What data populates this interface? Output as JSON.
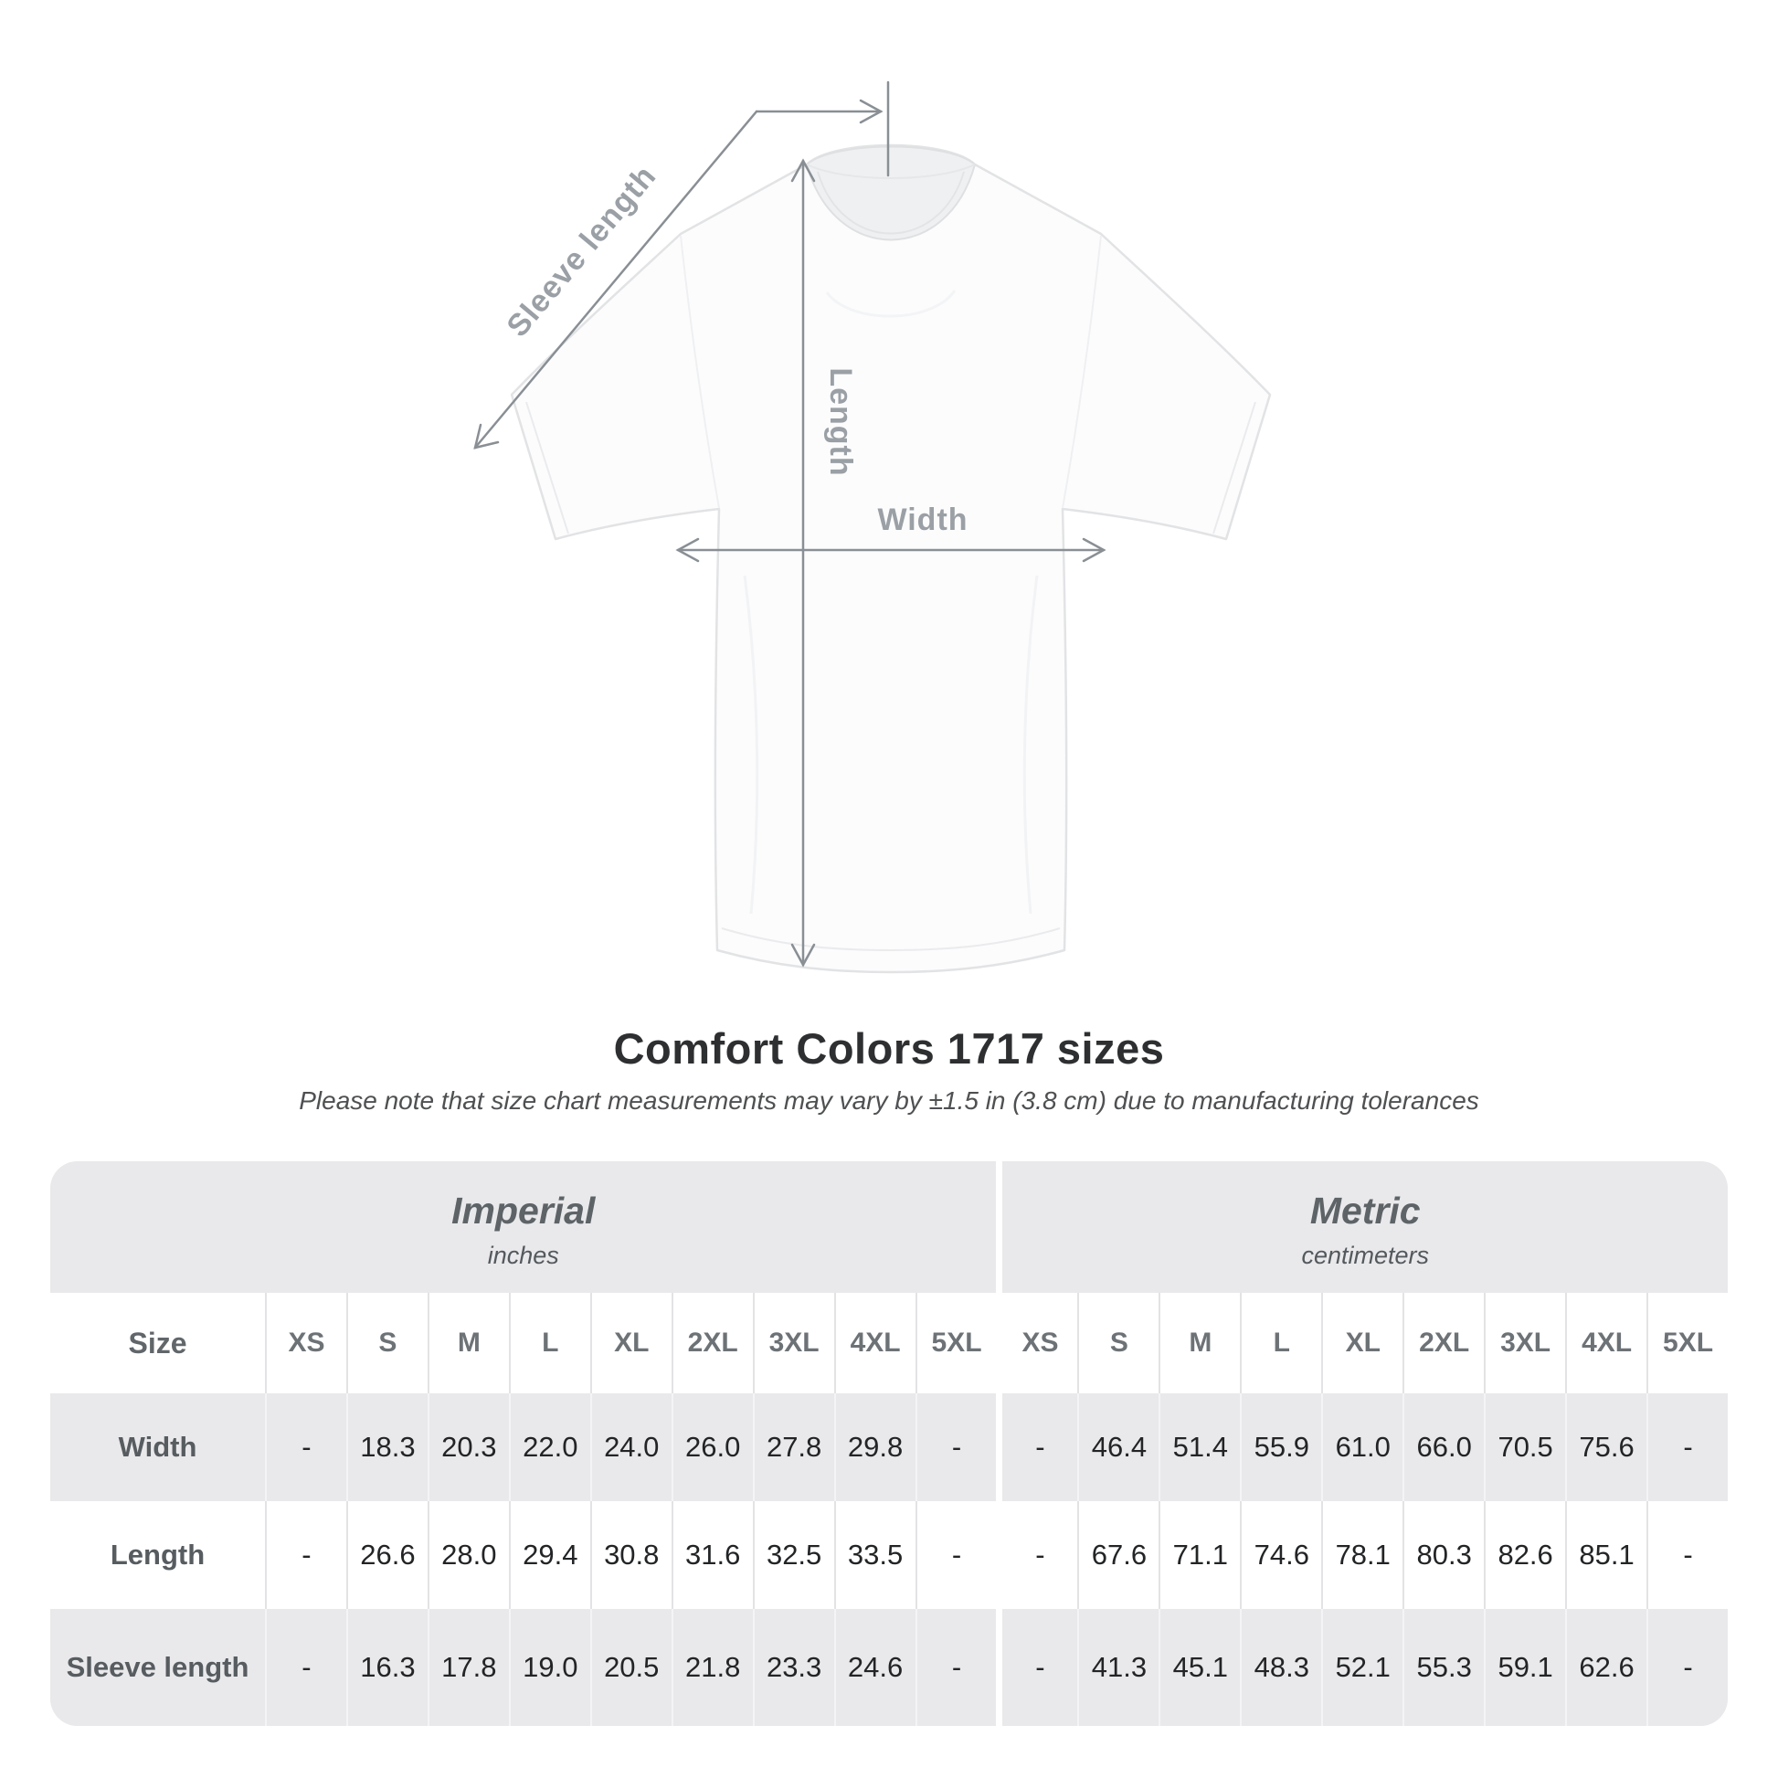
{
  "diagram": {
    "labels": {
      "sleeve_length": "Sleeve length",
      "length": "Length",
      "width": "Width"
    },
    "annotation_color": "#898f94",
    "label_color": "#9aa0a5"
  },
  "chart_data": {
    "type": "table",
    "title": "Comfort Colors 1717 sizes",
    "note": "Please note that size chart measurements may vary by ±1.5 in (3.8 cm) due to manufacturing tolerances",
    "unit_groups": [
      {
        "label": "Imperial",
        "unit": "inches"
      },
      {
        "label": "Metric",
        "unit": "centimeters"
      }
    ],
    "corner_header": "Size",
    "sizes": [
      "XS",
      "S",
      "M",
      "L",
      "XL",
      "2XL",
      "3XL",
      "4XL",
      "5XL"
    ],
    "rows": [
      {
        "label": "Width",
        "imperial": [
          "-",
          "18.3",
          "20.3",
          "22.0",
          "24.0",
          "26.0",
          "27.8",
          "29.8",
          "-"
        ],
        "metric": [
          "-",
          "46.4",
          "51.4",
          "55.9",
          "61.0",
          "66.0",
          "70.5",
          "75.6",
          "-"
        ]
      },
      {
        "label": "Length",
        "imperial": [
          "-",
          "26.6",
          "28.0",
          "29.4",
          "30.8",
          "31.6",
          "32.5",
          "33.5",
          "-"
        ],
        "metric": [
          "-",
          "67.6",
          "71.1",
          "74.6",
          "78.1",
          "80.3",
          "82.6",
          "85.1",
          "-"
        ]
      },
      {
        "label": "Sleeve length",
        "imperial": [
          "-",
          "16.3",
          "17.8",
          "19.0",
          "20.5",
          "21.8",
          "23.3",
          "24.6",
          "-"
        ],
        "metric": [
          "-",
          "41.3",
          "45.1",
          "48.3",
          "52.1",
          "55.3",
          "59.1",
          "62.6",
          "-"
        ]
      }
    ]
  },
  "colors": {
    "table_gray": "#e9e9eb",
    "row_white": "#ffffff",
    "title_text": "#2d2f31",
    "value_text": "#222426",
    "header_text": "#6d7276"
  }
}
